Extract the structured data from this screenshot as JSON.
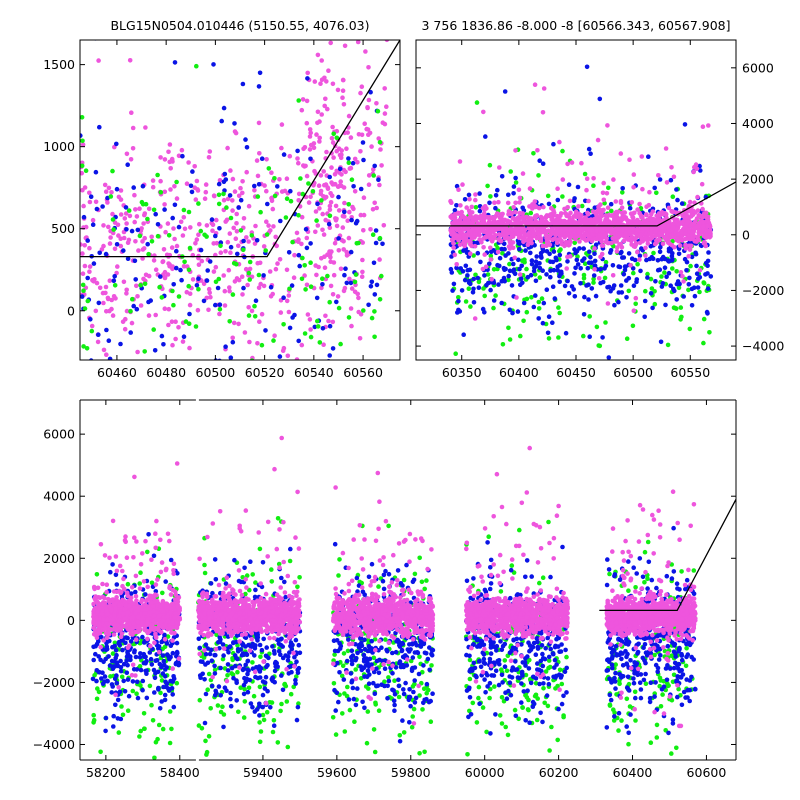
{
  "colors": {
    "magenta": "#ee55dd",
    "blue": "#0a14e6",
    "green": "#11ee11",
    "model_line": "#000000"
  },
  "chart_data": [
    {
      "id": "zoom",
      "type": "scatter",
      "title": "BLG15N0504.010446 (5150.55, 4076.03)",
      "xlim": [
        60445,
        60575
      ],
      "ylim": [
        -300,
        1650
      ],
      "xticks": [
        60460,
        60480,
        60500,
        60520,
        60540,
        60560
      ],
      "yticks": [
        0,
        500,
        1000,
        1500
      ],
      "ytick_side": "left",
      "model_line": {
        "x": [
          60445,
          60521,
          60575
        ],
        "y": [
          330,
          330,
          1650
        ]
      },
      "series": [
        {
          "color": "magenta",
          "seed": 11,
          "clusters": [
            {
              "x": [
                60445,
                60560
              ],
              "ymean": 400,
              "ysd": 320,
              "n": 560
            },
            {
              "x": [
                60535,
                60570
              ],
              "ymean": 950,
              "ysd": 320,
              "n": 140
            }
          ]
        },
        {
          "color": "blue",
          "seed": 23,
          "clusters": [
            {
              "x": [
                60445,
                60568
              ],
              "ymean": 300,
              "ysd": 500,
              "n": 230
            }
          ]
        },
        {
          "color": "green",
          "seed": 37,
          "clusters": [
            {
              "x": [
                60445,
                60568
              ],
              "ymean": 250,
              "ysd": 450,
              "n": 160
            }
          ]
        }
      ]
    },
    {
      "id": "season",
      "type": "scatter",
      "title": "3 756 1836.86 -8.000 -8 [60566.343, 60567.908]",
      "xlim": [
        60310,
        60590
      ],
      "ylim": [
        -4500,
        7000
      ],
      "xticks": [
        60350,
        60400,
        60450,
        60500,
        60550
      ],
      "yticks": [
        -4000,
        -2000,
        0,
        2000,
        4000,
        6000
      ],
      "ytick_side": "right",
      "model_line": {
        "x": [
          60310,
          60521,
          60590
        ],
        "y": [
          320,
          320,
          1900
        ]
      },
      "series": [
        {
          "color": "green",
          "seed": 41,
          "clusters": [
            {
              "x": [
                60340,
                60568
              ],
              "ymean": -900,
              "ysd": 1500,
              "n": 280
            }
          ]
        },
        {
          "color": "blue",
          "seed": 53,
          "clusters": [
            {
              "x": [
                60340,
                60568
              ],
              "ymean": -600,
              "ysd": 1100,
              "n": 600
            }
          ]
        },
        {
          "color": "magenta",
          "seed": 67,
          "clusters": [
            {
              "x": [
                60340,
                60568
              ],
              "ymean": 250,
              "ysd": 300,
              "n": 1500
            },
            {
              "x": [
                60340,
                60568
              ],
              "ymean": 800,
              "ysd": 1600,
              "n": 140
            }
          ]
        }
      ]
    },
    {
      "id": "full",
      "type": "scatter",
      "title": "",
      "broken_axis": true,
      "xlim": [
        58130,
        60680
      ],
      "ylim": [
        -4500,
        7100
      ],
      "hidden_x_range": [
        58445,
        59220
      ],
      "xticks": [
        58200,
        58400,
        59400,
        59600,
        59800,
        60000,
        60200,
        60400,
        60600
      ],
      "yticks": [
        -4000,
        -2000,
        0,
        2000,
        4000,
        6000
      ],
      "ytick_side": "left",
      "model_line": {
        "x": [
          60310,
          60521,
          60680
        ],
        "y": [
          320,
          320,
          3900
        ]
      },
      "season_ranges": [
        [
          58165,
          58400
        ],
        [
          59225,
          59500
        ],
        [
          59590,
          59860
        ],
        [
          59950,
          60225
        ],
        [
          60330,
          60570
        ]
      ],
      "series": [
        {
          "color": "green",
          "seed": 71,
          "clusters_per_season": {
            "ymean": -1100,
            "ysd": 1500,
            "n": 170
          }
        },
        {
          "color": "blue",
          "seed": 83,
          "clusters_per_season": {
            "ymean": -700,
            "ysd": 1100,
            "n": 350
          }
        },
        {
          "color": "magenta",
          "seed": 97,
          "clusters_per_season": {
            "ymean": 150,
            "ysd": 280,
            "n": 900,
            "extra_ymean": 800,
            "extra_ysd": 1600,
            "extra_n": 90
          }
        }
      ]
    }
  ]
}
